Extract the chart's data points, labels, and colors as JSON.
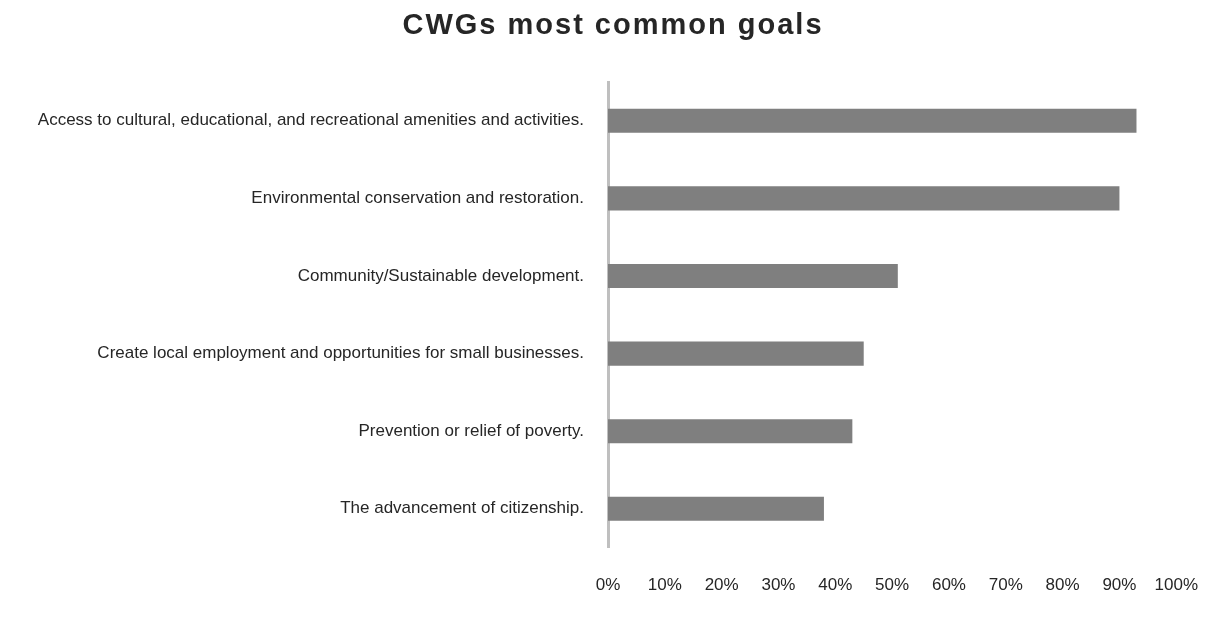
{
  "chart_data": {
    "type": "bar",
    "orientation": "horizontal",
    "title": "CWGs most common goals",
    "categories": [
      "Access to cultural, educational, and recreational amenities and activities.",
      "Environmental conservation and restoration.",
      "Community/Sustainable development.",
      "Create local employment and opportunities for small businesses.",
      "Prevention or relief of poverty.",
      "The advancement of citizenship."
    ],
    "values": [
      93,
      90,
      51,
      45,
      43,
      38
    ],
    "color": "#7f7f7f",
    "xlim": [
      0,
      100
    ],
    "xticks": [
      {
        "value": 0,
        "label": "0%"
      },
      {
        "value": 10,
        "label": "10%"
      },
      {
        "value": 20,
        "label": "20%"
      },
      {
        "value": 30,
        "label": "30%"
      },
      {
        "value": 40,
        "label": "40%"
      },
      {
        "value": 50,
        "label": "50%"
      },
      {
        "value": 60,
        "label": "60%"
      },
      {
        "value": 70,
        "label": "70%"
      },
      {
        "value": 80,
        "label": "80%"
      },
      {
        "value": 90,
        "label": "90%"
      },
      {
        "value": 100,
        "label": "100%"
      }
    ],
    "grid": false,
    "legend": false
  }
}
